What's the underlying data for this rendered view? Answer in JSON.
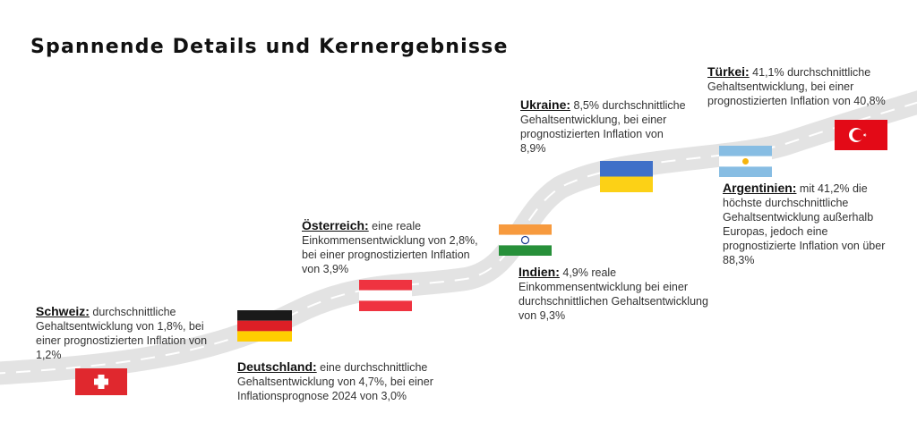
{
  "title": "Spannende Details und Kernergebnisse",
  "colors": {
    "road": "#e3e3e3",
    "road_dash": "#ffffff"
  },
  "countries": [
    {
      "id": "schweiz",
      "name": "Schweiz:",
      "text": " durchschnittliche Gehaltsentwicklung von 1,8%, bei einer prognostizierten Inflation von 1,2%",
      "flag": "switzerland-flag"
    },
    {
      "id": "deutschland",
      "name": "Deutschland:",
      "text": " eine durchschnittliche Gehaltsentwicklung von 4,7%, bei einer Inflationsprognose 2024 von 3,0%",
      "flag": "germany-flag"
    },
    {
      "id": "oesterreich",
      "name": "Österreich:",
      "text": " eine reale Einkommensentwicklung von 2,8%, bei einer prognostizierten Inflation von 3,9%",
      "flag": "austria-flag"
    },
    {
      "id": "indien",
      "name": "Indien:",
      "text": " 4,9% reale Einkommensentwicklung bei einer durchschnittlichen Gehaltsentwicklung von 9,3%",
      "flag": "india-flag"
    },
    {
      "id": "ukraine",
      "name": "Ukraine:",
      "text": " 8,5% durchschnittliche Gehaltsentwicklung, bei einer prognostizierten Inflation von 8,9%",
      "flag": "ukraine-flag"
    },
    {
      "id": "argentinien",
      "name": "Argentinien:",
      "text": " mit 41,2% die höchste durchschnittliche Gehaltsentwicklung außerhalb Europas, jedoch eine prognostizierte Inflation von über 88,3%",
      "flag": "argentina-flag"
    },
    {
      "id": "tuerkei",
      "name": "Türkei:",
      "text": " 41,1% durchschnittliche Gehaltsentwicklung, bei einer prognostizierten Inflation von 40,8%",
      "flag": "turkey-flag"
    }
  ]
}
